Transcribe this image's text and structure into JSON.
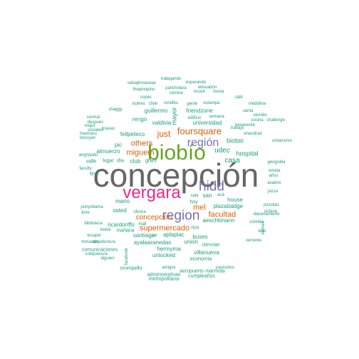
{
  "words": {
    "concepcion": "concepción",
    "biobio": "biobío",
    "vergara": "vergara",
    "region": "region",
    "hidd": "hidd",
    "region_acc": "región",
    "foursquare": "foursquare",
    "others": "others",
    "just": "just",
    "miguem": "miguem",
    "supermercado": "supermercado",
    "mel": "mel",
    "facultad": "facultad",
    "concepcion_plain": "concepcion",
    "udec": "udec",
    "casa": "casa",
    "biobio_plain": "biobio",
    "hospital": "hospital",
    "mayor": "mayor",
    "universidad": "universidad",
    "friendzone": "friendzone",
    "valdivia": "valdivia",
    "rengo": "rengo",
    "guillermo": "guillermo",
    "fellpeteco": "fellpeteco",
    "pic": "pic",
    "almuerzo": "almuerzo",
    "club": "club",
    "grant": "grant",
    "mario": "mario",
    "osted": "osted",
    "ricardoriffo": "ricardoriffo",
    "santiago": "santiago",
    "aplaplac": "aplaplac",
    "ayalaaranedas": "ayalaaranedas",
    "hermyma": "hermyma",
    "villanueva": "villanueva",
    "buses": "buses",
    "union": "union",
    "aeschlimann": "aeschlimann",
    "plaza": "plaza",
    "house": "house",
    "badge": "badge",
    "san": "san",
    "hoy": "hoy",
    "rios": "rios",
    "unlocked": "unlocked",
    "comunicaciones": "comunicaciones",
    "amigos": "amigos",
    "orompello": "orompello",
    "administrativas": "administrativas",
    "metropolitana": "metropolitana",
    "cumpleanos": "cumpleaños",
    "aeropuerto": "aeropuerto",
    "marmota": "marmota",
    "economia": "economia",
    "ciencias": "ciencias",
    "trabajando": "trabajando",
    "esperando": "esperando",
    "educadon": "educadon",
    "pancholara": "pancholara",
    "thepinopino": "thepinopino",
    "sebaplnoaseas": "sebaplnoaseas",
    "knock": "knock",
    "tomar": "tomar",
    "cafe": "café",
    "carrera": "carrera",
    "copec": "copec",
    "bulnes": "bulnes",
    "chile": "chile",
    "rendibu": "rendibu",
    "gente": "gente",
    "estampa": "estampa",
    "edificio": "edificio",
    "semana": "semana",
    "trabajo": "trabajo",
    "benavente": "benavente",
    "enandrad": "enandrad",
    "departamento": "departamento",
    "medidina": "medidina",
    "cocina": "cocina",
    "santa": "santa",
    "servido": "servido",
    "challenge": "challenge",
    "urbanismo": "urbanismo",
    "geografia": "geografia",
    "renata": "renata",
    "anos": "años",
    "pizza": "pizza",
    "asados": "asados",
    "octava": "octava",
    "lider": "lider",
    "piscolas": "piscolas",
    "comida": "comida",
    "verrente": "verrente",
    "viernes": "viernes",
    "paulsotos": "paulsotos",
    "facebook": "facebook",
    "lugar": "lugar",
    "dia": "día",
    "valle": "valle",
    "igual": "igual",
    "central": "central",
    "despues": "después",
    "mejor": "mejor",
    "sociales": "sociales",
    "brasas": "brasas",
    "haomaru": "haomaru",
    "lincoyan": "lincoyan",
    "shaggy": "shaggy",
    "faculty": "faculty",
    "angrypato": "angrypato",
    "biblioteca": "biblioteca",
    "tucapel": "tucapel",
    "arquitectura": "arquitectura",
    "tomando": "tomando",
    "trebol": "trebol",
    "manana": "mañana",
    "mall": "mall",
    "ser": "ser",
    "oficina": "oficina",
    "acá": "acá",
    "sala": "sala",
    "alguien": "alguien",
    "cobquecura": "cobquecura",
    "ponyribama": "ponyribama",
    "time": "time"
  }
}
